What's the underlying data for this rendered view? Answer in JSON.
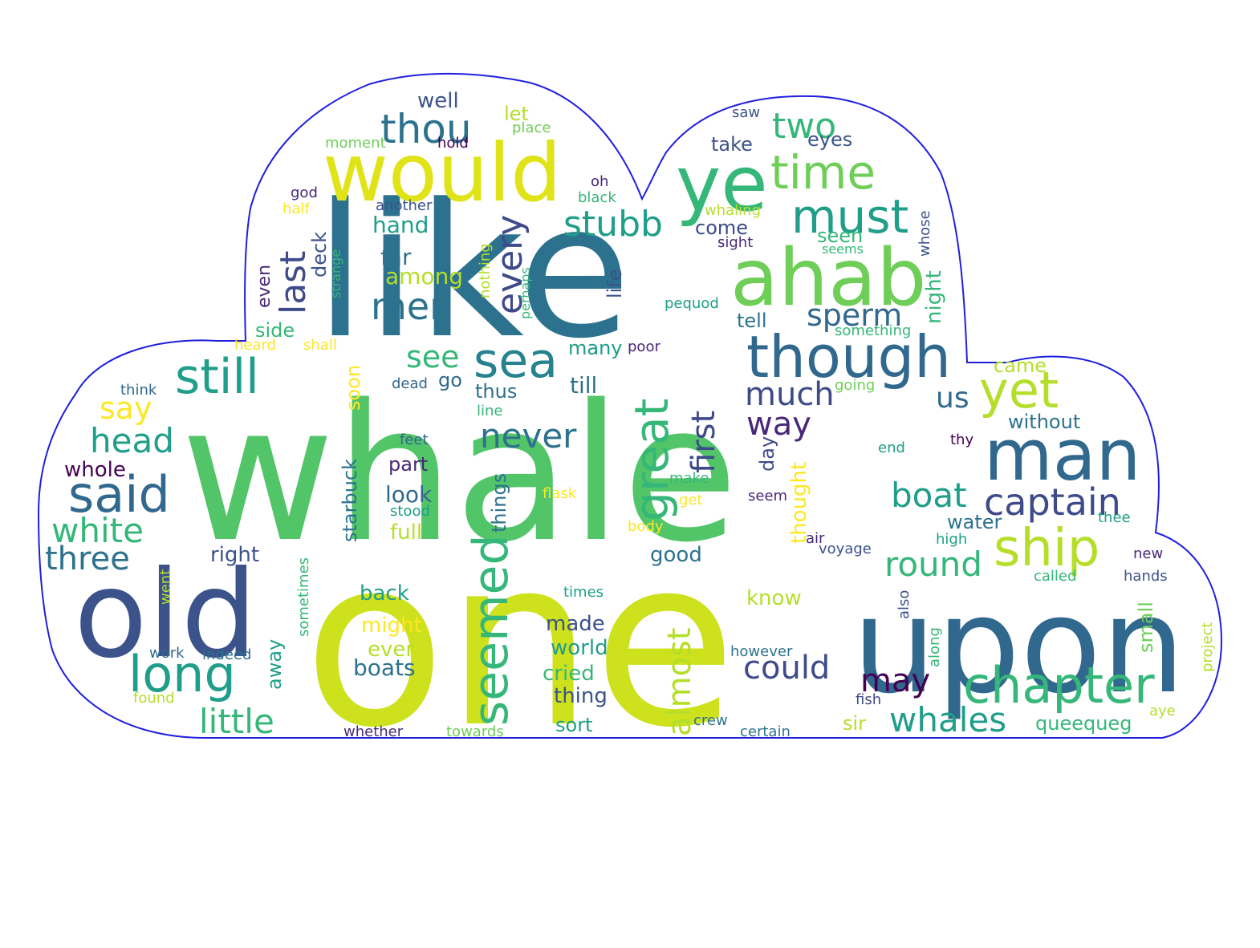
{
  "cloud_outline_color": "#1f1fe0",
  "palette": {
    "p0": "#440154",
    "p1": "#482878",
    "p2": "#3e4a89",
    "p3": "#31688e",
    "p4": "#26828e",
    "p5": "#1f9e89",
    "p6": "#35b779",
    "p7": "#6ece58",
    "p8": "#b5de2b",
    "p9": "#fde725",
    "p10": "#2c728e",
    "p11": "#4ac16d",
    "p12": "#52c569",
    "p13": "#cde11d",
    "p14": "#dfe318",
    "p15": "#3b528b"
  },
  "words": [
    {
      "text": "whale",
      "color": "p12"
    },
    {
      "text": "one",
      "color": "p13"
    },
    {
      "text": "like",
      "color": "p10"
    },
    {
      "text": "upon",
      "color": "p3"
    },
    {
      "text": "old",
      "color": "p15"
    },
    {
      "text": "would",
      "color": "p14"
    },
    {
      "text": "ahab",
      "color": "p7"
    },
    {
      "text": "ye",
      "color": "p6"
    },
    {
      "text": "man",
      "color": "p3"
    },
    {
      "text": "though",
      "color": "p3"
    },
    {
      "text": "ship",
      "color": "p8"
    },
    {
      "text": "chapter",
      "color": "p6"
    },
    {
      "text": "sea",
      "color": "p4"
    },
    {
      "text": "still",
      "color": "p5"
    },
    {
      "text": "yet",
      "color": "p8"
    },
    {
      "text": "said",
      "color": "p3"
    },
    {
      "text": "long",
      "color": "p5"
    },
    {
      "text": "time",
      "color": "p7"
    },
    {
      "text": "must",
      "color": "p5"
    },
    {
      "text": "seemed",
      "color": "p6"
    },
    {
      "text": "great",
      "color": "p6"
    },
    {
      "text": "captain",
      "color": "p2"
    },
    {
      "text": "thou",
      "color": "p10"
    },
    {
      "text": "two",
      "color": "p6"
    },
    {
      "text": "men",
      "color": "p10"
    },
    {
      "text": "last",
      "color": "p2"
    },
    {
      "text": "every",
      "color": "p2"
    },
    {
      "text": "stubb",
      "color": "p5"
    },
    {
      "text": "head",
      "color": "p5"
    },
    {
      "text": "white",
      "color": "p6"
    },
    {
      "text": "three",
      "color": "p10"
    },
    {
      "text": "little",
      "color": "p6"
    },
    {
      "text": "whales",
      "color": "p5"
    },
    {
      "text": "round",
      "color": "p6"
    },
    {
      "text": "boat",
      "color": "p5"
    },
    {
      "text": "could",
      "color": "p2"
    },
    {
      "text": "may",
      "color": "p0"
    },
    {
      "text": "much",
      "color": "p2"
    },
    {
      "text": "way",
      "color": "p1"
    },
    {
      "text": "never",
      "color": "p10"
    },
    {
      "text": "sperm",
      "color": "p3"
    },
    {
      "text": "first",
      "color": "p2"
    },
    {
      "text": "almost",
      "color": "p8"
    },
    {
      "text": "see",
      "color": "p6"
    },
    {
      "text": "say",
      "color": "p9"
    },
    {
      "text": "us",
      "color": "p3"
    },
    {
      "text": "well",
      "color": "p15"
    },
    {
      "text": "let",
      "color": "p8"
    },
    {
      "text": "place",
      "color": "p7"
    },
    {
      "text": "moment",
      "color": "p7"
    },
    {
      "text": "hold",
      "color": "p0"
    },
    {
      "text": "saw",
      "color": "p15"
    },
    {
      "text": "eyes",
      "color": "p15"
    },
    {
      "text": "take",
      "color": "p15"
    },
    {
      "text": "oh",
      "color": "p1"
    },
    {
      "text": "black",
      "color": "p6"
    },
    {
      "text": "god",
      "color": "p1"
    },
    {
      "text": "another",
      "color": "p15"
    },
    {
      "text": "whaling",
      "color": "p8"
    },
    {
      "text": "half",
      "color": "p9"
    },
    {
      "text": "hand",
      "color": "p5"
    },
    {
      "text": "come",
      "color": "p2"
    },
    {
      "text": "seen",
      "color": "p6"
    },
    {
      "text": "sight",
      "color": "p1"
    },
    {
      "text": "seems",
      "color": "p6"
    },
    {
      "text": "whose",
      "color": "p15"
    },
    {
      "text": "deck",
      "color": "p15"
    },
    {
      "text": "strange",
      "color": "p6"
    },
    {
      "text": "far",
      "color": "p10"
    },
    {
      "text": "nothing",
      "color": "p8"
    },
    {
      "text": "perhaps",
      "color": "p6"
    },
    {
      "text": "among",
      "color": "p8"
    },
    {
      "text": "life",
      "color": "p15"
    },
    {
      "text": "night",
      "color": "p6"
    },
    {
      "text": "even",
      "color": "p1"
    },
    {
      "text": "pequod",
      "color": "p5"
    },
    {
      "text": "tell",
      "color": "p10"
    },
    {
      "text": "side",
      "color": "p6"
    },
    {
      "text": "something",
      "color": "p6"
    },
    {
      "text": "heard",
      "color": "p9"
    },
    {
      "text": "shall",
      "color": "p9"
    },
    {
      "text": "many",
      "color": "p5"
    },
    {
      "text": "poor",
      "color": "p1"
    },
    {
      "text": "dead",
      "color": "p3"
    },
    {
      "text": "go",
      "color": "p3"
    },
    {
      "text": "till",
      "color": "p10"
    },
    {
      "text": "came",
      "color": "p8"
    },
    {
      "text": "think",
      "color": "p3"
    },
    {
      "text": "soon",
      "color": "p9"
    },
    {
      "text": "thus",
      "color": "p10"
    },
    {
      "text": "going",
      "color": "p7"
    },
    {
      "text": "line",
      "color": "p6"
    },
    {
      "text": "without",
      "color": "p10"
    },
    {
      "text": "feet",
      "color": "p3"
    },
    {
      "text": "end",
      "color": "p5"
    },
    {
      "text": "thy",
      "color": "p0"
    },
    {
      "text": "whole",
      "color": "p0"
    },
    {
      "text": "part",
      "color": "p1"
    },
    {
      "text": "day",
      "color": "p2"
    },
    {
      "text": "starbuck",
      "color": "p10"
    },
    {
      "text": "things",
      "color": "p10"
    },
    {
      "text": "look",
      "color": "p3"
    },
    {
      "text": "make",
      "color": "p6"
    },
    {
      "text": "flask",
      "color": "p9"
    },
    {
      "text": "seem",
      "color": "p1"
    },
    {
      "text": "stood",
      "color": "p5"
    },
    {
      "text": "get",
      "color": "p9"
    },
    {
      "text": "thought",
      "color": "p9"
    },
    {
      "text": "full",
      "color": "p8"
    },
    {
      "text": "body",
      "color": "p9"
    },
    {
      "text": "water",
      "color": "p10"
    },
    {
      "text": "thee",
      "color": "p5"
    },
    {
      "text": "high",
      "color": "p5"
    },
    {
      "text": "air",
      "color": "p1"
    },
    {
      "text": "voyage",
      "color": "p15"
    },
    {
      "text": "good",
      "color": "p10"
    },
    {
      "text": "right",
      "color": "p15"
    },
    {
      "text": "new",
      "color": "p1"
    },
    {
      "text": "called",
      "color": "p6"
    },
    {
      "text": "hands",
      "color": "p15"
    },
    {
      "text": "went",
      "color": "p8"
    },
    {
      "text": "sometimes",
      "color": "p6"
    },
    {
      "text": "also",
      "color": "p15"
    },
    {
      "text": "times",
      "color": "p5"
    },
    {
      "text": "back",
      "color": "p5"
    },
    {
      "text": "know",
      "color": "p8"
    },
    {
      "text": "might",
      "color": "p9"
    },
    {
      "text": "made",
      "color": "p15"
    },
    {
      "text": "project",
      "color": "p8"
    },
    {
      "text": "small",
      "color": "p7"
    },
    {
      "text": "ever",
      "color": "p8"
    },
    {
      "text": "world",
      "color": "p5"
    },
    {
      "text": "work",
      "color": "p3"
    },
    {
      "text": "indeed",
      "color": "p10"
    },
    {
      "text": "however",
      "color": "p10"
    },
    {
      "text": "along",
      "color": "p6"
    },
    {
      "text": "away",
      "color": "p5"
    },
    {
      "text": "boats",
      "color": "p10"
    },
    {
      "text": "cried",
      "color": "p6"
    },
    {
      "text": "thing",
      "color": "p15"
    },
    {
      "text": "fish",
      "color": "p2"
    },
    {
      "text": "found",
      "color": "p8"
    },
    {
      "text": "aye",
      "color": "p8"
    },
    {
      "text": "crew",
      "color": "p10"
    },
    {
      "text": "sir",
      "color": "p8"
    },
    {
      "text": "whether",
      "color": "p1"
    },
    {
      "text": "towards",
      "color": "p7"
    },
    {
      "text": "sort",
      "color": "p5"
    },
    {
      "text": "certain",
      "color": "p10"
    },
    {
      "text": "queequeg",
      "color": "p6"
    }
  ]
}
